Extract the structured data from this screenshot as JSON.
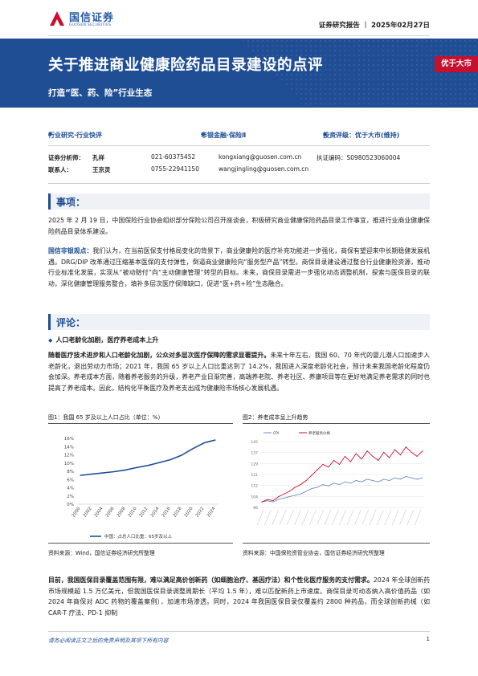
{
  "header": {
    "logo_cn": "国信证券",
    "logo_en": "GUOSEN SECURITIES",
    "report_type": "证券研究报告 ｜ 2025年02月27日"
  },
  "banner": {
    "title": "关于推进商业健康险药品目录建设的点评",
    "subtitle": "打造“医、药、险”行业生态",
    "rating": "优于大市"
  },
  "categories": {
    "industry": "行业研究·行业快评",
    "sector": "非银金融·保险Ⅱ",
    "rating": "投资评级：优于大市(维持)"
  },
  "contacts": {
    "analyst_label": "证券分析师：",
    "analyst_name": "孔祥",
    "analyst_phone": "021-60375452",
    "analyst_email": "kongxiang@guosen.com.cn",
    "cert_label": "执证编码：S0980523060004",
    "contact_label": "联系人：",
    "contact_name": "王京灵",
    "contact_phone": "0755-22941150",
    "contact_email": "wangjingling@guosen.com.cn"
  },
  "event": {
    "title": "事项：",
    "text": "2025 年 2 月 19 日，中国保险行业协会组织部分保险公司召开座谈会，积极研究商业健康保险药品目录工作事宜，推进行业商业健康保险药品目录体系建设。"
  },
  "view": {
    "label": "国信非银观点：",
    "text": "我们认为，在当前医保支付格局变化的背景下，商业健康险的医疗补充功能进一步强化，商保有望迎来中长期稳健发展机遇。DRG/DIP 改革通过压缩基本医保的支付弹性，倒逼商业健康险向“服务型产品”转型。商保目录建设通过整合行业健康险资源，推动行业标准化发展，实现从“被动赔付”向“主动健康管理”转型的目标。未来，商保目录需进一步强化动态调整机制，探索与医保目录的联动，深化健康管理服务整合，填补多层次医疗保障缺口，促进“医+药+险”生态融合。"
  },
  "comment": {
    "title": "评论：",
    "subhead": "人口老龄化加剧，医疗养老成本上升",
    "para1_bold": "随着医疗技术进步和人口老龄化加剧，公众对多层次医疗保障的需求显著提升。",
    "para1_rest": "未来十年左右，我国 60、70 年代的婴儿潮人口加速步入老龄化，退出劳动力市场；2021 年，我国 65 岁以上人口比重达到了 14.2%，我国进入深度老龄化社会，预计未来我国老龄化程度仍会加深。养老成本方面，随着养老服务的升级，养老产业日渐完善，高端养老院、养老社区、养康项目等在更好地满足养老需求的同时也提高了养老成本。因此，结构化平衡医疗及养老支出成为健康险市场核心发展机遇。",
    "para2_bold": "目前，我国医保目录覆盖范围有限，难以满足高价创新药（如细胞治疗、基因疗法）和个性化医疗服务的支付需求。",
    "para2_rest": "2024 年全球创新药市场规模超 1.5 万亿美元，但我国医保目录调整周期长（平均 1.5 年），难以匹配新药上市速度。商保目录可动态纳入高价值药品（如 2024 年商保对 ADC 药物的覆盖案例），加速市场渗透。同时，2024 年我国医保目录仅覆盖约 2800 种药品，而全球创新药械（如 CAR-T 疗法、PD-1 抑制"
  },
  "figure1": {
    "caption": "图1：我国 65 岁及以上人口占比（单位：%）",
    "source": "资料来源：Wind，国信证券经济研究所整理"
  },
  "figure2": {
    "caption": "图2：养老成本呈上升趋势",
    "source": "资料来源：中国保险资管业协会，国信证券经济研究所整理"
  },
  "chart_data": [
    {
      "type": "line",
      "title": "",
      "yticks": [
        "0%",
        "2%",
        "4%",
        "6%",
        "8%",
        "10%",
        "12%",
        "14%",
        "16%"
      ],
      "ylim": [
        0,
        16
      ],
      "x": [
        "2000",
        "2002",
        "2004",
        "2006",
        "2008",
        "2010",
        "2012",
        "2014",
        "2016",
        "2018",
        "2020",
        "2022",
        "2024"
      ],
      "series": [
        {
          "name": "中国：占总人口比重：65岁及以上",
          "color": "#1f4e94",
          "values": [
            7.0,
            7.3,
            7.6,
            7.9,
            8.3,
            8.9,
            9.4,
            10.1,
            10.8,
            11.9,
            13.5,
            14.9,
            15.6
          ]
        }
      ]
    },
    {
      "type": "line",
      "title": "",
      "legend": [
        "CPI",
        "养老服务价格"
      ],
      "legend_position": "top-left",
      "colors": [
        "#6b8fc7",
        "#c8102e"
      ],
      "note": "approx. weekly/monthly index lines rising with fluctuation",
      "series": [
        {
          "name": "CPI",
          "values": [
            100,
            101,
            100,
            102,
            103,
            104,
            105,
            106,
            108,
            110,
            111,
            113,
            112,
            114,
            113,
            115,
            114,
            116,
            115,
            117,
            116,
            115,
            117,
            116,
            118,
            117,
            119,
            118,
            117,
            118
          ]
        },
        {
          "name": "养老服务价格",
          "values": [
            100,
            102,
            101,
            104,
            106,
            108,
            111,
            113,
            116,
            120,
            124,
            128,
            126,
            131,
            128,
            134,
            130,
            136,
            132,
            138,
            134,
            131,
            137,
            133,
            139,
            135,
            141,
            137,
            134,
            138
          ]
        }
      ]
    }
  ],
  "footer": {
    "disclaimer": "请务必阅读正文之后的免责声明及其项下所有内容",
    "page": "1"
  }
}
